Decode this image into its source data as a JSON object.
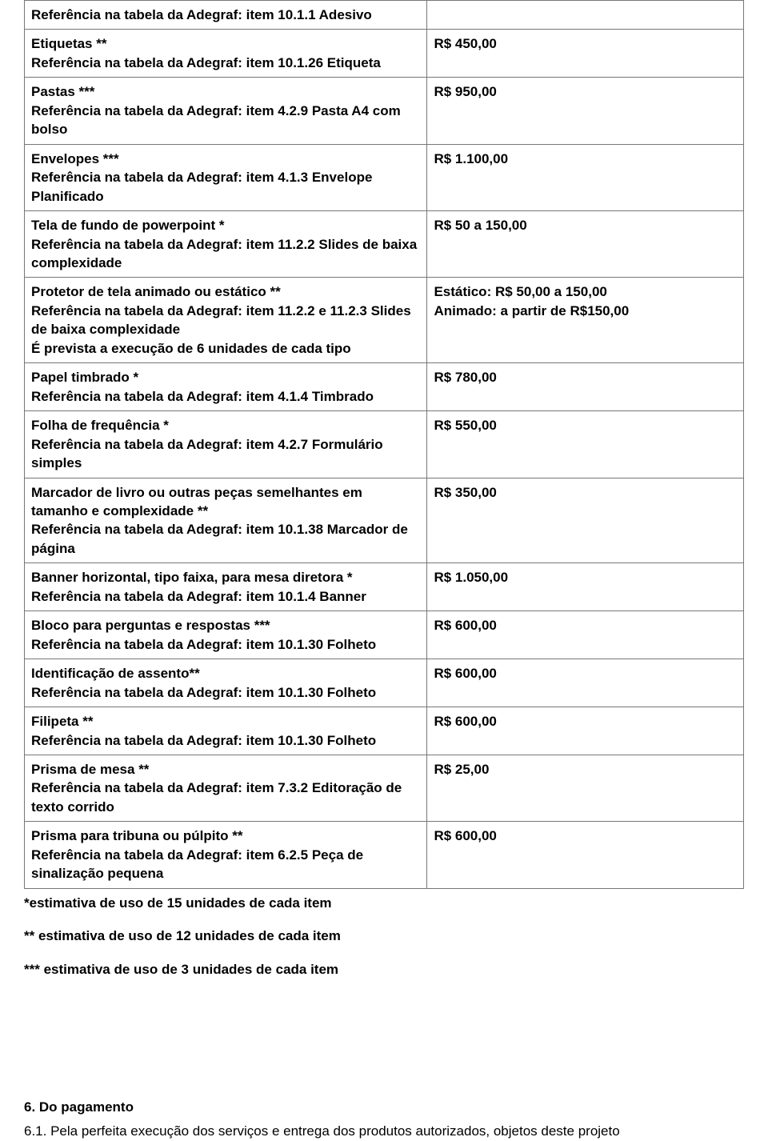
{
  "rows": [
    {
      "title": "Referência na tabela da Adegraf: item 10.1.1 Adesivo",
      "ref": "",
      "value": ""
    },
    {
      "title": "Etiquetas **",
      "ref": "Referência na tabela da Adegraf: item 10.1.26 Etiqueta",
      "value": "R$ 450,00"
    },
    {
      "title": "Pastas ***",
      "ref": "Referência na tabela da Adegraf: item 4.2.9 Pasta A4 com bolso",
      "value": "R$ 950,00"
    },
    {
      "title": "Envelopes ***",
      "ref": "Referência na tabela da Adegraf: item 4.1.3 Envelope Planificado",
      "value": "R$ 1.100,00"
    },
    {
      "title": "Tela de fundo de powerpoint *",
      "ref": "Referência na tabela da Adegraf: item 11.2.2 Slides de baixa complexidade",
      "value": "R$ 50 a 150,00"
    },
    {
      "title": "Protetor de tela animado ou estático **",
      "ref": "Referência na tabela da Adegraf: item 11.2.2 e 11.2.3 Slides de baixa complexidade",
      "extra": "É prevista a execução de 6 unidades de cada tipo",
      "value2a": "Estático: R$ 50,00 a 150,00",
      "value2b": "Animado: a partir de R$150,00"
    },
    {
      "title": "Papel  timbrado *",
      "ref": "Referência na tabela da Adegraf: item 4.1.4 Timbrado",
      "value": "R$ 780,00"
    },
    {
      "title": "Folha de frequência *",
      "ref": "Referência na tabela da Adegraf: item 4.2.7 Formulário simples",
      "value": "R$ 550,00"
    },
    {
      "title": "Marcador de livro ou outras peças semelhantes em tamanho e complexidade **",
      "ref": "Referência na tabela da Adegraf: item 10.1.38 Marcador de página",
      "value": "R$ 350,00"
    },
    {
      "title": "Banner horizontal, tipo faixa, para mesa diretora *",
      "ref": "Referência na tabela da Adegraf: item 10.1.4 Banner",
      "value": "R$ 1.050,00"
    },
    {
      "title": "Bloco para perguntas e respostas ***",
      "ref": "Referência na tabela da Adegraf: item 10.1.30 Folheto",
      "value": "R$ 600,00"
    },
    {
      "title": "Identificação de assento**",
      "ref": "Referência na tabela da Adegraf: item 10.1.30 Folheto",
      "value": "R$ 600,00"
    },
    {
      "title": "Filipeta **",
      "ref": "Referência na tabela da Adegraf: item 10.1.30 Folheto",
      "value": "R$ 600,00"
    },
    {
      "title": "Prisma de mesa **",
      "ref": "Referência na tabela da Adegraf: item 7.3.2 Editoração de texto corrido",
      "value": "R$ 25,00"
    },
    {
      "title": "Prisma para tribuna ou púlpito **",
      "ref": "Referência na tabela da Adegraf: item 6.2.5 Peça de sinalização pequena",
      "value": "R$ 600,00"
    }
  ],
  "notes": {
    "n1": "*estimativa de uso de 15 unidades de cada item",
    "n2": "** estimativa de uso de 12 unidades de cada item",
    "n3": "*** estimativa de uso de 3 unidades de cada item"
  },
  "section": {
    "title": "6. Do pagamento",
    "para": "6.1. Pela perfeita execução dos serviços e entrega dos produtos autorizados, objetos deste projeto"
  }
}
